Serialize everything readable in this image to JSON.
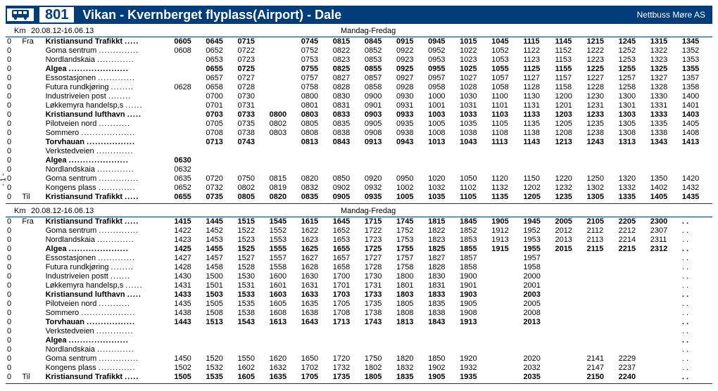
{
  "header": {
    "route_number": "801",
    "title": "Vikan - Kvernberget flyplass(Airport) - Dale",
    "operator": "Nettbuss  Møre AS"
  },
  "side_label": "- 1 -",
  "meta": {
    "km_label": "Km",
    "period": "20.08.12-16.06.13",
    "days": "Mandag-Fredag"
  },
  "dir_from": "Fra",
  "dir_to": "Til",
  "block1": {
    "stops": [
      {
        "name": "Kristiansund Trafikkt",
        "bold": true,
        "dir": "Fra",
        "times": [
          "0605",
          "0645",
          "0715",
          "",
          "0745",
          "0815",
          "0845",
          "0915",
          "0945",
          "1015",
          "1045",
          "1115",
          "1145",
          "1215",
          "1245",
          "1315",
          "1345"
        ]
      },
      {
        "name": "Goma sentrum",
        "times": [
          "0608",
          "0652",
          "0722",
          "",
          "0752",
          "0822",
          "0852",
          "0922",
          "0952",
          "1022",
          "1052",
          "1122",
          "1152",
          "1222",
          "1252",
          "1322",
          "1352"
        ]
      },
      {
        "name": "Nordlandskaia",
        "times": [
          "",
          "0653",
          "0723",
          "",
          "0753",
          "0823",
          "0853",
          "0923",
          "0953",
          "1023",
          "1053",
          "1123",
          "1153",
          "1223",
          "1253",
          "1323",
          "1353"
        ]
      },
      {
        "name": "Algea",
        "bold": true,
        "times": [
          "",
          "0655",
          "0725",
          "",
          "0755",
          "0825",
          "0855",
          "0925",
          "0955",
          "1025",
          "1055",
          "1125",
          "1155",
          "1225",
          "1255",
          "1325",
          "1355"
        ]
      },
      {
        "name": "Essostasjonen",
        "times": [
          "",
          "0657",
          "0727",
          "",
          "0757",
          "0827",
          "0857",
          "0927",
          "0957",
          "1027",
          "1057",
          "1127",
          "1157",
          "1227",
          "1257",
          "1327",
          "1357"
        ]
      },
      {
        "name": "Futura rundkjøring",
        "times": [
          "0628",
          "0658",
          "0728",
          "",
          "0758",
          "0828",
          "0858",
          "0928",
          "0958",
          "1028",
          "1058",
          "1128",
          "1158",
          "1228",
          "1258",
          "1328",
          "1358"
        ]
      },
      {
        "name": "Industriveien post",
        "times": [
          "",
          "0700",
          "0730",
          "",
          "0800",
          "0830",
          "0900",
          "0930",
          "1000",
          "1030",
          "1100",
          "1130",
          "1200",
          "1230",
          "1300",
          "1330",
          "1400"
        ]
      },
      {
        "name": "Løkkemyra handelsp,s",
        "times": [
          "",
          "0701",
          "0731",
          "",
          "0801",
          "0831",
          "0901",
          "0931",
          "1001",
          "1031",
          "1101",
          "1131",
          "1201",
          "1231",
          "1301",
          "1331",
          "1401"
        ]
      },
      {
        "name": "Kristiansund lufthavn",
        "bold": true,
        "times": [
          "",
          "0703",
          "0733",
          "0800",
          "0803",
          "0833",
          "0903",
          "0933",
          "1003",
          "1033",
          "1103",
          "1133",
          "1203",
          "1233",
          "1303",
          "1333",
          "1403"
        ]
      },
      {
        "name": "Pilotveien nord",
        "times": [
          "",
          "0705",
          "0735",
          "0802",
          "0805",
          "0835",
          "0905",
          "0935",
          "1005",
          "1035",
          "1105",
          "1135",
          "1205",
          "1235",
          "1305",
          "1335",
          "1405"
        ]
      },
      {
        "name": "Sommero",
        "times": [
          "",
          "0708",
          "0738",
          "0803",
          "0808",
          "0838",
          "0908",
          "0938",
          "1008",
          "1038",
          "1108",
          "1138",
          "1208",
          "1238",
          "1308",
          "1338",
          "1408"
        ]
      },
      {
        "name": "Torvhauan",
        "bold": true,
        "times": [
          "",
          "0713",
          "0743",
          "",
          "0813",
          "0843",
          "0913",
          "0943",
          "1013",
          "1043",
          "1113",
          "1143",
          "1213",
          "1243",
          "1313",
          "1343",
          "1413"
        ]
      },
      {
        "name": "Verkstedveien",
        "times": [
          "",
          "",
          "",
          "",
          "",
          "",
          "",
          "",
          "",
          "",
          "",
          "",
          "",
          "",
          "",
          "",
          ""
        ]
      },
      {
        "name": "Algea",
        "bold": true,
        "times": [
          "0630",
          "",
          "",
          "",
          "",
          "",
          "",
          "",
          "",
          "",
          "",
          "",
          "",
          "",
          "",
          "",
          ""
        ]
      },
      {
        "name": "Nordlandskaia",
        "times": [
          "0632",
          "",
          "",
          "",
          "",
          "",
          "",
          "",
          "",
          "",
          "",
          "",
          "",
          "",
          "",
          "",
          ""
        ]
      },
      {
        "name": "Goma sentrum",
        "times": [
          "0635",
          "0720",
          "0750",
          "0815",
          "0820",
          "0850",
          "0920",
          "0950",
          "1020",
          "1050",
          "1120",
          "1150",
          "1220",
          "1250",
          "1320",
          "1350",
          "1420"
        ]
      },
      {
        "name": "Kongens plass",
        "times": [
          "0652",
          "0732",
          "0802",
          "0819",
          "0832",
          "0902",
          "0932",
          "1002",
          "1032",
          "1102",
          "1132",
          "1202",
          "1232",
          "1302",
          "1332",
          "1402",
          "1432"
        ]
      },
      {
        "name": "Kristiansund Trafikkt",
        "bold": true,
        "dir": "Til",
        "times": [
          "0655",
          "0735",
          "0805",
          "0820",
          "0835",
          "0905",
          "0935",
          "1005",
          "1035",
          "1105",
          "1135",
          "1205",
          "1235",
          "1305",
          "1335",
          "1405",
          "1435"
        ]
      }
    ]
  },
  "block2": {
    "stops": [
      {
        "name": "Kristiansund Trafikkt",
        "bold": true,
        "dir": "Fra",
        "times": [
          "1415",
          "1445",
          "1515",
          "1545",
          "1615",
          "1645",
          "1715",
          "1745",
          "1815",
          "1845",
          "1905",
          "1945",
          "2005",
          "2105",
          "2205",
          "2300",
          ". ."
        ]
      },
      {
        "name": "Goma sentrum",
        "times": [
          "1422",
          "1452",
          "1522",
          "1552",
          "1622",
          "1652",
          "1722",
          "1752",
          "1822",
          "1852",
          "1912",
          "1952",
          "2012",
          "2112",
          "2212",
          "2307",
          ". ."
        ]
      },
      {
        "name": "Nordlandskaia",
        "times": [
          "1423",
          "1453",
          "1523",
          "1553",
          "1623",
          "1653",
          "1723",
          "1753",
          "1823",
          "1853",
          "1913",
          "1953",
          "2013",
          "2113",
          "2214",
          "2311",
          ". ."
        ]
      },
      {
        "name": "Algea",
        "bold": true,
        "times": [
          "1425",
          "1455",
          "1525",
          "1555",
          "1625",
          "1655",
          "1725",
          "1755",
          "1825",
          "1855",
          "1915",
          "1955",
          "2015",
          "2115",
          "2215",
          "2312",
          ". ."
        ]
      },
      {
        "name": "Essostasjonen",
        "times": [
          "1427",
          "1457",
          "1527",
          "1557",
          "1627",
          "1657",
          "1727",
          "1757",
          "1827",
          "1857",
          "",
          "1957",
          "",
          "",
          "",
          "",
          ". ."
        ]
      },
      {
        "name": "Futura rundkjøring",
        "times": [
          "1428",
          "1458",
          "1528",
          "1558",
          "1628",
          "1658",
          "1728",
          "1758",
          "1828",
          "1858",
          "",
          "1958",
          "",
          "",
          "",
          "",
          ". ."
        ]
      },
      {
        "name": "Industriveien postt",
        "times": [
          "1430",
          "1500",
          "1530",
          "1600",
          "1630",
          "1700",
          "1730",
          "1800",
          "1830",
          "1900",
          "",
          "2000",
          "",
          "",
          "",
          "",
          ". ."
        ]
      },
      {
        "name": "Løkkemyra handelsp,s",
        "times": [
          "1431",
          "1501",
          "1531",
          "1601",
          "1631",
          "1701",
          "1731",
          "1801",
          "1831",
          "1901",
          "",
          "2001",
          "",
          "",
          "",
          "",
          ". ."
        ]
      },
      {
        "name": "Kristiansund lufthavn",
        "bold": true,
        "times": [
          "1433",
          "1503",
          "1533",
          "1603",
          "1633",
          "1703",
          "1733",
          "1803",
          "1833",
          "1903",
          "",
          "2003",
          "",
          "",
          "",
          "",
          ". ."
        ]
      },
      {
        "name": "Pilotveien nord",
        "times": [
          "1435",
          "1505",
          "1535",
          "1605",
          "1635",
          "1705",
          "1735",
          "1805",
          "1835",
          "1905",
          "",
          "2005",
          "",
          "",
          "",
          "",
          ". ."
        ]
      },
      {
        "name": "Sommero",
        "times": [
          "1438",
          "1508",
          "1538",
          "1608",
          "1638",
          "1708",
          "1738",
          "1808",
          "1838",
          "1908",
          "",
          "2008",
          "",
          "",
          "",
          "",
          ". ."
        ]
      },
      {
        "name": "Torvhauan",
        "bold": true,
        "times": [
          "1443",
          "1513",
          "1543",
          "1613",
          "1643",
          "1713",
          "1743",
          "1813",
          "1843",
          "1913",
          "",
          "2013",
          "",
          "",
          "",
          "",
          ". ."
        ]
      },
      {
        "name": "Verkstedveien",
        "times": [
          "",
          "",
          "",
          "",
          "",
          "",
          "",
          "",
          "",
          "",
          "",
          "",
          "",
          "",
          "",
          "",
          ". ."
        ]
      },
      {
        "name": "Algea",
        "bold": true,
        "times": [
          "",
          "",
          "",
          "",
          "",
          "",
          "",
          "",
          "",
          "",
          "",
          "",
          "",
          "",
          "",
          "",
          ". ."
        ]
      },
      {
        "name": "Nordlandskaia",
        "times": [
          "",
          "",
          "",
          "",
          "",
          "",
          "",
          "",
          "",
          "",
          "",
          "",
          "",
          "",
          "",
          "",
          ". ."
        ]
      },
      {
        "name": "Goma sentrum",
        "times": [
          "1450",
          "1520",
          "1550",
          "1620",
          "1650",
          "1720",
          "1750",
          "1820",
          "1850",
          "1920",
          "",
          "2020",
          "",
          "2141",
          "2229",
          "",
          ". ."
        ]
      },
      {
        "name": "Kongens plass",
        "times": [
          "1502",
          "1532",
          "1602",
          "1632",
          "1702",
          "1732",
          "1802",
          "1832",
          "1902",
          "1932",
          "",
          "2032",
          "",
          "2147",
          "2237",
          "",
          ". ."
        ]
      },
      {
        "name": "Kristiansund Trafikkt",
        "bold": true,
        "dir": "Til",
        "times": [
          "1505",
          "1535",
          "1605",
          "1635",
          "1705",
          "1735",
          "1805",
          "1835",
          "1905",
          "1935",
          "",
          "2035",
          "",
          "2150",
          "2240",
          "",
          ". ."
        ]
      }
    ]
  }
}
